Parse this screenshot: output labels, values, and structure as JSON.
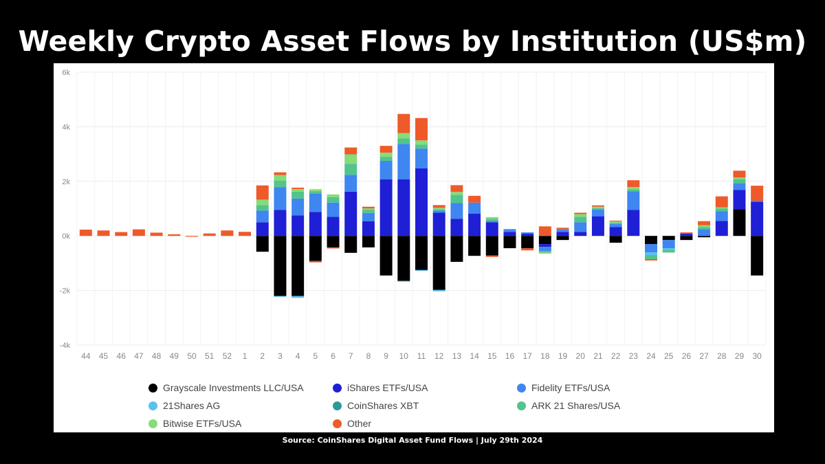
{
  "title": "Weekly Crypto Asset Flows by Institution (US$m)",
  "source": "Source: CoinShares Digital Asset Fund Flows | July 29th 2024",
  "chart_data": {
    "type": "bar",
    "stacked": true,
    "ylim": [
      -4000,
      6000
    ],
    "yticks": [
      -4000,
      -2000,
      0,
      2000,
      4000,
      6000
    ],
    "ytick_labels": [
      "-4k",
      "-2k",
      "0k",
      "2k",
      "4k",
      "6k"
    ],
    "grid": true,
    "legend_position": "bottom",
    "categories": [
      "44",
      "45",
      "46",
      "47",
      "48",
      "49",
      "50",
      "51",
      "52",
      "1",
      "2",
      "3",
      "4",
      "5",
      "6",
      "7",
      "8",
      "9",
      "10",
      "11",
      "12",
      "13",
      "14",
      "15",
      "16",
      "17",
      "18",
      "19",
      "20",
      "21",
      "22",
      "23",
      "24",
      "25",
      "26",
      "27",
      "28",
      "29",
      "30"
    ],
    "series": [
      {
        "name": "Grayscale Investments LLC/USA",
        "color": "#000000",
        "values": [
          0,
          0,
          0,
          0,
          0,
          0,
          0,
          0,
          0,
          0,
          -580,
          -2200,
          -2200,
          -920,
          -420,
          -620,
          -420,
          -1450,
          -1650,
          -1250,
          -1980,
          -950,
          -730,
          -720,
          -450,
          -450,
          -300,
          -150,
          0,
          0,
          -250,
          0,
          -300,
          -150,
          -150,
          -50,
          0,
          980,
          -1450
        ]
      },
      {
        "name": "iShares ETFs/USA",
        "color": "#1f1fd6",
        "values": [
          0,
          0,
          0,
          0,
          0,
          0,
          0,
          0,
          0,
          0,
          500,
          950,
          750,
          880,
          700,
          1620,
          540,
          2070,
          2070,
          2480,
          850,
          630,
          820,
          500,
          150,
          80,
          -100,
          150,
          150,
          720,
          320,
          950,
          0,
          0,
          80,
          0,
          550,
          700,
          1250
        ]
      },
      {
        "name": "Fidelity ETFs/USA",
        "color": "#3f86f0",
        "values": [
          0,
          0,
          0,
          0,
          0,
          0,
          0,
          0,
          0,
          0,
          430,
          830,
          620,
          680,
          520,
          620,
          300,
          680,
          1300,
          720,
          80,
          580,
          400,
          50,
          100,
          50,
          -150,
          100,
          350,
          250,
          120,
          680,
          -300,
          -300,
          0,
          250,
          350,
          250,
          40
        ]
      },
      {
        "name": "21Shares AG",
        "color": "#5bc0f0",
        "values": [
          0,
          0,
          0,
          0,
          0,
          0,
          0,
          0,
          0,
          0,
          0,
          -30,
          -70,
          0,
          0,
          0,
          0,
          0,
          -20,
          -30,
          -50,
          0,
          0,
          0,
          0,
          0,
          0,
          0,
          0,
          0,
          0,
          0,
          -100,
          -60,
          0,
          0,
          0,
          0,
          0
        ]
      },
      {
        "name": "CoinShares XBT",
        "color": "#2c9a9a",
        "values": [
          0,
          0,
          0,
          0,
          0,
          0,
          0,
          0,
          0,
          0,
          0,
          0,
          0,
          0,
          0,
          0,
          0,
          0,
          0,
          0,
          0,
          0,
          0,
          0,
          0,
          0,
          0,
          0,
          0,
          0,
          0,
          0,
          0,
          0,
          0,
          0,
          0,
          0,
          0
        ]
      },
      {
        "name": "ARK 21 Shares/USA",
        "color": "#52c48c",
        "values": [
          0,
          0,
          0,
          0,
          0,
          0,
          0,
          0,
          0,
          0,
          200,
          250,
          250,
          80,
          200,
          400,
          120,
          150,
          200,
          150,
          50,
          300,
          0,
          80,
          0,
          0,
          -50,
          0,
          200,
          50,
          50,
          80,
          -150,
          -100,
          0,
          70,
          100,
          150,
          0
        ]
      },
      {
        "name": "Bitwise ETFs/USA",
        "color": "#86dc78",
        "values": [
          0,
          0,
          0,
          0,
          0,
          0,
          0,
          0,
          0,
          0,
          200,
          200,
          100,
          70,
          100,
          350,
          50,
          150,
          200,
          150,
          50,
          100,
          0,
          60,
          0,
          0,
          -50,
          0,
          100,
          50,
          50,
          80,
          0,
          0,
          0,
          70,
          50,
          60,
          0
        ]
      },
      {
        "name": "Other",
        "color": "#ee5a2a",
        "values": [
          230,
          200,
          140,
          240,
          120,
          60,
          -30,
          90,
          200,
          150,
          520,
          100,
          50,
          -50,
          -40,
          250,
          60,
          250,
          700,
          820,
          100,
          250,
          250,
          -50,
          0,
          -80,
          350,
          50,
          50,
          50,
          20,
          250,
          -50,
          0,
          50,
          150,
          400,
          250,
          550
        ]
      }
    ]
  },
  "legend": [
    {
      "label": "Grayscale Investments LLC/USA",
      "color": "#000000"
    },
    {
      "label": "iShares ETFs/USA",
      "color": "#1f1fd6"
    },
    {
      "label": "Fidelity ETFs/USA",
      "color": "#3f86f0"
    },
    {
      "label": "21Shares AG",
      "color": "#5bc0f0"
    },
    {
      "label": "CoinShares XBT",
      "color": "#2c9a9a"
    },
    {
      "label": "ARK 21 Shares/USA",
      "color": "#52c48c"
    },
    {
      "label": "Bitwise ETFs/USA",
      "color": "#86dc78"
    },
    {
      "label": "Other",
      "color": "#ee5a2a"
    }
  ]
}
